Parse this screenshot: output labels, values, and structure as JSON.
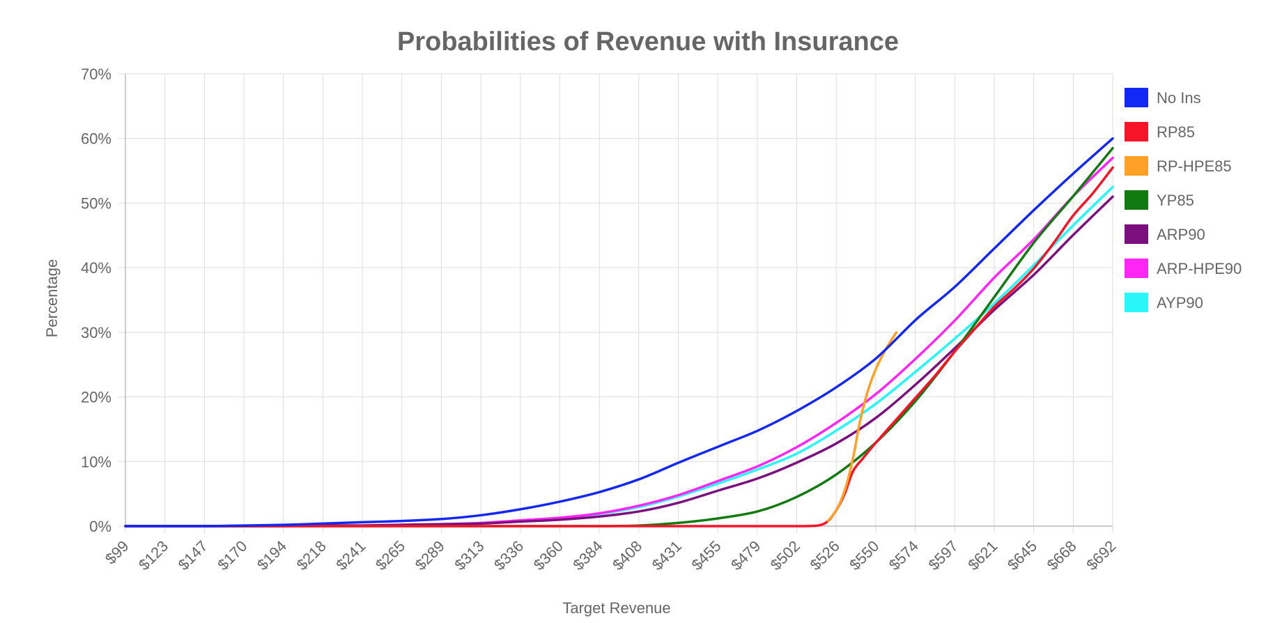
{
  "chart_data": {
    "type": "line",
    "title": "Probabilities of Revenue with Insurance",
    "xlabel": "Target Revenue",
    "ylabel": "Percentage",
    "ylim": [
      0,
      70
    ],
    "yticks": [
      0,
      10,
      20,
      30,
      40,
      50,
      60,
      70
    ],
    "ytick_labels": [
      "0%",
      "10%",
      "20%",
      "30%",
      "40%",
      "50%",
      "60%",
      "70%"
    ],
    "categories": [
      "$99",
      "$123",
      "$147",
      "$170",
      "$194",
      "$218",
      "$241",
      "$265",
      "$289",
      "$313",
      "$336",
      "$360",
      "$384",
      "$408",
      "$431",
      "$455",
      "$479",
      "$502",
      "$526",
      "$550",
      "$574",
      "$597",
      "$621",
      "$645",
      "$668",
      "$692"
    ],
    "grid": true,
    "legend_position": "right",
    "series": [
      {
        "name": "No Ins",
        "color": "#1428f5",
        "x": [
          99,
          123,
          147,
          170,
          194,
          218,
          241,
          265,
          289,
          313,
          336,
          360,
          384,
          408,
          431,
          455,
          479,
          502,
          526,
          550,
          574,
          597,
          621,
          645,
          668,
          692
        ],
        "values": [
          0,
          0,
          0,
          0.1,
          0.2,
          0.4,
          0.6,
          0.8,
          1.1,
          1.7,
          2.6,
          3.8,
          5.3,
          7.3,
          9.8,
          12.3,
          14.8,
          17.8,
          21.5,
          26.0,
          32.0,
          37.0,
          43.0,
          49.0,
          54.5,
          60.0
        ]
      },
      {
        "name": "RP85",
        "color": "#f51428",
        "x": [
          99,
          123,
          147,
          170,
          194,
          218,
          241,
          265,
          289,
          313,
          336,
          360,
          384,
          408,
          431,
          455,
          479,
          502,
          515,
          521,
          526,
          531,
          536,
          542,
          550,
          562,
          574,
          586,
          597,
          609,
          621,
          633,
          645,
          657,
          668,
          680,
          692
        ],
        "values": [
          0,
          0,
          0,
          0,
          0,
          0,
          0,
          0,
          0,
          0,
          0,
          0,
          0,
          0,
          0,
          0,
          0,
          0,
          0.1,
          0.8,
          2.5,
          5.0,
          8.5,
          10.5,
          13.0,
          16.5,
          20.0,
          23.5,
          27.0,
          30.5,
          34.0,
          36.8,
          40.0,
          44.0,
          48.0,
          51.5,
          55.5
        ]
      },
      {
        "name": "RP-HPE85",
        "color": "#ffa126",
        "x": [
          521,
          526,
          531,
          536,
          540,
          545,
          550,
          556,
          562
        ],
        "values": [
          0.8,
          2.5,
          5.5,
          10.5,
          16.0,
          21.0,
          24.5,
          27.5,
          30.0
        ]
      },
      {
        "name": "YP85",
        "color": "#117a11",
        "x": [
          99,
          123,
          147,
          170,
          194,
          218,
          241,
          265,
          289,
          313,
          336,
          360,
          384,
          408,
          431,
          455,
          479,
          502,
          526,
          550,
          574,
          597,
          621,
          645,
          668,
          692
        ],
        "values": [
          0,
          0,
          0,
          0,
          0,
          0,
          0,
          0,
          0,
          0,
          0,
          0,
          0,
          0.1,
          0.5,
          1.2,
          2.3,
          4.5,
          8.0,
          13.0,
          19.5,
          27.0,
          35.5,
          44.0,
          51.0,
          58.5
        ]
      },
      {
        "name": "ARP90",
        "color": "#7b0f7d",
        "x": [
          99,
          123,
          147,
          170,
          194,
          218,
          241,
          265,
          289,
          313,
          336,
          360,
          384,
          408,
          431,
          455,
          479,
          502,
          526,
          550,
          574,
          597,
          621,
          645,
          668,
          692
        ],
        "values": [
          0,
          0,
          0,
          0,
          0,
          0.1,
          0.1,
          0.2,
          0.3,
          0.4,
          0.7,
          1.0,
          1.5,
          2.3,
          3.6,
          5.5,
          7.4,
          9.8,
          12.8,
          16.8,
          22.0,
          27.5,
          33.5,
          39.0,
          45.0,
          51.0
        ]
      },
      {
        "name": "ARP-HPE90",
        "color": "#ff26f5",
        "x": [
          99,
          123,
          147,
          170,
          194,
          218,
          241,
          265,
          289,
          313,
          336,
          360,
          384,
          408,
          431,
          455,
          479,
          502,
          526,
          550,
          574,
          597,
          621,
          645,
          668,
          692
        ],
        "values": [
          0,
          0,
          0,
          0,
          0,
          0.1,
          0.1,
          0.2,
          0.3,
          0.5,
          0.9,
          1.3,
          2.0,
          3.2,
          4.8,
          7.0,
          9.3,
          12.2,
          16.0,
          20.5,
          26.0,
          31.8,
          38.5,
          44.5,
          51.0,
          57.0
        ]
      },
      {
        "name": "AYP90",
        "color": "#29f7f7",
        "x": [
          99,
          123,
          147,
          170,
          194,
          218,
          241,
          265,
          289,
          313,
          336,
          360,
          384,
          408,
          431,
          455,
          479,
          502,
          526,
          550,
          574,
          597,
          621,
          645,
          668,
          692
        ],
        "values": [
          0,
          0,
          0,
          0,
          0,
          0.1,
          0.1,
          0.2,
          0.3,
          0.5,
          0.8,
          1.2,
          1.9,
          3.0,
          4.6,
          6.6,
          8.8,
          11.2,
          14.8,
          19.0,
          24.0,
          29.0,
          34.5,
          40.5,
          46.5,
          52.5
        ]
      }
    ]
  }
}
